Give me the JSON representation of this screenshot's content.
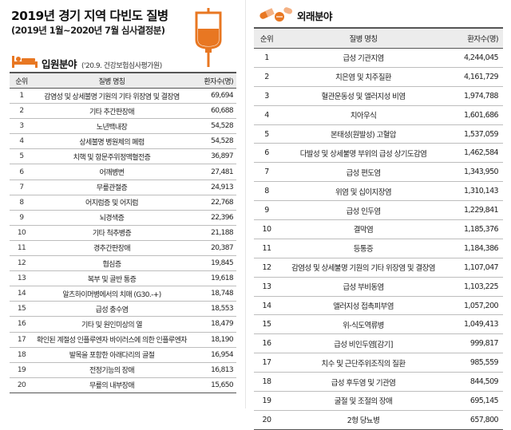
{
  "header": {
    "title": "2019년 경기 지역 다빈도 질병",
    "subtitle": "(2019년 1월~2020년 7월 심사결정분)"
  },
  "inpatient": {
    "title": "입원분야",
    "note": "('20.9. 건강보험심사평가원)",
    "columns": {
      "rank": "순위",
      "disease": "질병 명칭",
      "count": "환자수(명)"
    },
    "rows": [
      {
        "rank": "1",
        "disease": "감염성 및 상세불명 기원의 기타 위장염 및 결장염",
        "count": "69,694"
      },
      {
        "rank": "2",
        "disease": "기타 추간판장애",
        "count": "60,688"
      },
      {
        "rank": "3",
        "disease": "노년백내장",
        "count": "54,528"
      },
      {
        "rank": "4",
        "disease": "상세불명 병원체의 폐렴",
        "count": "54,528"
      },
      {
        "rank": "5",
        "disease": "치핵 및 항문주위정맥혈전증",
        "count": "36,897"
      },
      {
        "rank": "6",
        "disease": "어깨병변",
        "count": "27,481"
      },
      {
        "rank": "7",
        "disease": "무릎관절증",
        "count": "24,913"
      },
      {
        "rank": "8",
        "disease": "어지럼증 및 어지럼",
        "count": "22,768"
      },
      {
        "rank": "9",
        "disease": "뇌경색증",
        "count": "22,396"
      },
      {
        "rank": "10",
        "disease": "기타 척추병증",
        "count": "21,188"
      },
      {
        "rank": "11",
        "disease": "경추간판장애",
        "count": "20,387"
      },
      {
        "rank": "12",
        "disease": "협심증",
        "count": "19,845"
      },
      {
        "rank": "13",
        "disease": "복부 및 골반 통증",
        "count": "19,618"
      },
      {
        "rank": "14",
        "disease": "알츠하이머병에서의 치매 (G30.-+)",
        "count": "18,748"
      },
      {
        "rank": "15",
        "disease": "급성 충수염",
        "count": "18,553"
      },
      {
        "rank": "16",
        "disease": "기타 및 원인미상의 열",
        "count": "18,479"
      },
      {
        "rank": "17",
        "disease": "확인된 계절성 인플루엔자 바이러스에 의한 인플루엔자",
        "count": "18,190"
      },
      {
        "rank": "18",
        "disease": "발목을 포함한 아래다리의 골절",
        "count": "16,954"
      },
      {
        "rank": "19",
        "disease": "전정기능의 장애",
        "count": "16,813"
      },
      {
        "rank": "20",
        "disease": "무릎의 내부장애",
        "count": "15,650"
      }
    ]
  },
  "outpatient": {
    "title": "외래분야",
    "columns": {
      "rank": "순위",
      "disease": "질병 명칭",
      "count": "환자수(명)"
    },
    "rows": [
      {
        "rank": "1",
        "disease": "급성 기관지염",
        "count": "4,244,045"
      },
      {
        "rank": "2",
        "disease": "치은염 및 치주질환",
        "count": "4,161,729"
      },
      {
        "rank": "3",
        "disease": "혈관운동성 및 앨러지성 비염",
        "count": "1,974,788"
      },
      {
        "rank": "4",
        "disease": "치아우식",
        "count": "1,601,686"
      },
      {
        "rank": "5",
        "disease": "본태성(원발성) 고혈압",
        "count": "1,537,059"
      },
      {
        "rank": "6",
        "disease": "다발성 및 상세불명 부위의 급성 상기도감염",
        "count": "1,462,584"
      },
      {
        "rank": "7",
        "disease": "급성 편도염",
        "count": "1,343,950"
      },
      {
        "rank": "8",
        "disease": "위염 및 십이지장염",
        "count": "1,310,143"
      },
      {
        "rank": "9",
        "disease": "급성 인두염",
        "count": "1,229,841"
      },
      {
        "rank": "10",
        "disease": "결막염",
        "count": "1,185,376"
      },
      {
        "rank": "11",
        "disease": "등통증",
        "count": "1,184,386"
      },
      {
        "rank": "12",
        "disease": "감염성 및 상세불명 기원의 기타 위장염 및 결장염",
        "count": "1,107,047"
      },
      {
        "rank": "13",
        "disease": "급성 부비동염",
        "count": "1,103,225"
      },
      {
        "rank": "14",
        "disease": "앨러지성 접촉피부염",
        "count": "1,057,200"
      },
      {
        "rank": "15",
        "disease": "위-식도역류병",
        "count": "1,049,413"
      },
      {
        "rank": "16",
        "disease": "급성 비인두염[감기]",
        "count": "999,817"
      },
      {
        "rank": "17",
        "disease": "치수 및 근단주위조직의 질환",
        "count": "985,559"
      },
      {
        "rank": "18",
        "disease": "급성 후두염 및 기관염",
        "count": "844,509"
      },
      {
        "rank": "19",
        "disease": "굴절 및 조절의 장애",
        "count": "695,145"
      },
      {
        "rank": "20",
        "disease": "2형 당뇨병",
        "count": "657,800"
      }
    ]
  },
  "icons": {
    "iv": "iv-bag-icon",
    "bed": "hospital-bed-icon",
    "pills": "pills-icon"
  },
  "colors": {
    "accent": "#e87722"
  }
}
